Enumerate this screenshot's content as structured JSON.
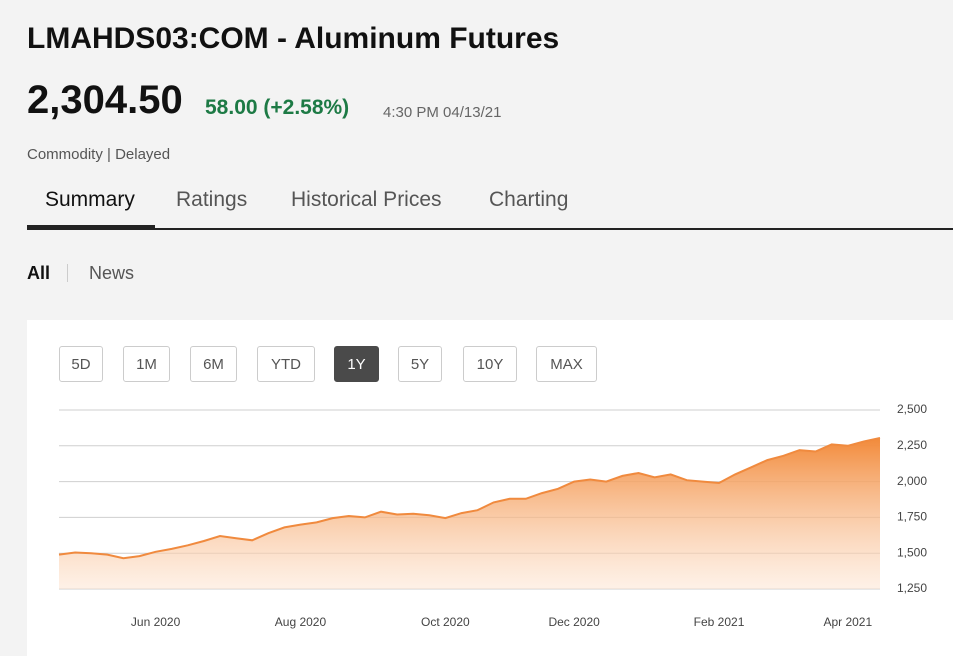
{
  "header": {
    "title": "LMAHDS03:COM - Aluminum Futures",
    "price": "2,304.50",
    "change": "58.00 (+2.58%)",
    "timestamp": "4:30 PM 04/13/21",
    "meta": "Commodity | Delayed"
  },
  "tabs": [
    "Summary",
    "Ratings",
    "Historical Prices",
    "Charting"
  ],
  "filters": [
    "All",
    "News"
  ],
  "ranges": [
    "5D",
    "1M",
    "6M",
    "YTD",
    "1Y",
    "5Y",
    "10Y",
    "MAX"
  ],
  "chart_data": {
    "type": "area",
    "categories": [
      null,
      null,
      null,
      null,
      null,
      null,
      "Jun 2020",
      null,
      null,
      null,
      null,
      null,
      null,
      null,
      null,
      "Aug 2020",
      null,
      null,
      null,
      null,
      null,
      null,
      null,
      null,
      "Oct 2020",
      null,
      null,
      null,
      null,
      null,
      null,
      null,
      "Dec 2020",
      null,
      null,
      null,
      null,
      null,
      null,
      null,
      null,
      "Feb 2021",
      null,
      null,
      null,
      null,
      null,
      null,
      null,
      "Apr 2021",
      null,
      null
    ],
    "series": [
      {
        "name": "LMAHDS03:COM",
        "color": "#f08a3e",
        "values": [
          1490,
          1505,
          1500,
          1490,
          1465,
          1480,
          1510,
          1530,
          1555,
          1585,
          1620,
          1605,
          1590,
          1640,
          1680,
          1700,
          1715,
          1745,
          1760,
          1750,
          1790,
          1770,
          1775,
          1765,
          1745,
          1780,
          1800,
          1855,
          1880,
          1880,
          1920,
          1950,
          2000,
          2015,
          2000,
          2040,
          2060,
          2030,
          2050,
          2010,
          2000,
          1990,
          2050,
          2100,
          2150,
          2180,
          2220,
          2210,
          2260,
          2250,
          2280,
          2304.5
        ]
      }
    ],
    "ylim": [
      1250,
      2500
    ],
    "yticks": [
      {
        "value": 1250,
        "label": "1,250"
      },
      {
        "value": 1500,
        "label": "1,500"
      },
      {
        "value": 1750,
        "label": "1,750"
      },
      {
        "value": 2000,
        "label": "2,000"
      },
      {
        "value": 2250,
        "label": "2,250"
      },
      {
        "value": 2500,
        "label": "2,500"
      }
    ],
    "grid": true
  }
}
